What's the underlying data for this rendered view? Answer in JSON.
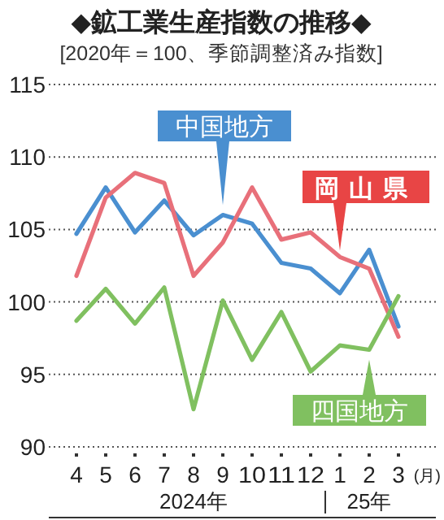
{
  "chart_data": {
    "type": "line",
    "title": "◆鉱工業生産指数の推移◆",
    "subtitle": "[2020年＝100、季節調整済み指数]",
    "categories": [
      "4",
      "5",
      "6",
      "7",
      "8",
      "9",
      "10",
      "11",
      "12",
      "1",
      "2",
      "3"
    ],
    "xlabel": "(月)",
    "annotations": [
      "2024年",
      "25年"
    ],
    "series": [
      {
        "name": "中国地方",
        "color": "#4a8fd0",
        "values": [
          104.7,
          107.9,
          104.8,
          107.0,
          104.6,
          106.0,
          105.4,
          102.7,
          102.3,
          100.6,
          103.6,
          98.3
        ]
      },
      {
        "name": "岡山県",
        "color": "#e8707a",
        "values": [
          101.8,
          107.2,
          108.9,
          108.2,
          101.8,
          104.1,
          107.9,
          104.3,
          104.8,
          103.1,
          102.3,
          97.6
        ]
      },
      {
        "name": "四国地方",
        "color": "#80c060",
        "values": [
          98.7,
          100.9,
          98.5,
          101.0,
          92.6,
          100.1,
          96.0,
          99.3,
          95.2,
          97.0,
          96.7,
          100.4
        ]
      }
    ],
    "ylim": [
      90,
      115
    ],
    "yticks": [
      90,
      95,
      100,
      105,
      110,
      115
    ],
    "grid": "y"
  }
}
